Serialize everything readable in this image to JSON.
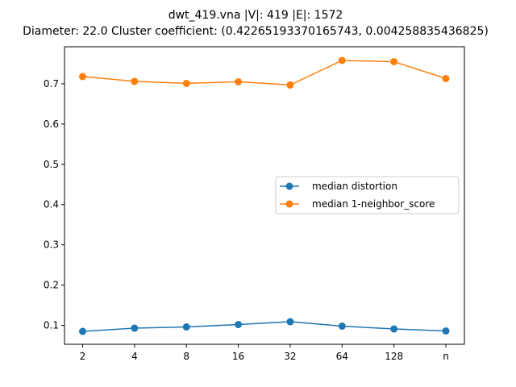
{
  "chart_data": {
    "type": "line",
    "title_line1": "dwt_419.vna |V|: 419 |E|: 1572",
    "title_line2": "Diameter: 22.0 Cluster coefficient: (0.42265193370165743, 0.004258835436825)",
    "categories": [
      "2",
      "4",
      "8",
      "16",
      "32",
      "64",
      "128",
      "n"
    ],
    "series": [
      {
        "name": "median distortion",
        "color": "#1f77b4",
        "values": [
          0.085,
          0.093,
          0.096,
          0.102,
          0.109,
          0.098,
          0.091,
          0.086
        ]
      },
      {
        "name": "median 1-neighbor_score",
        "color": "#ff7f0e",
        "values": [
          0.718,
          0.706,
          0.701,
          0.705,
          0.697,
          0.758,
          0.755,
          0.713
        ]
      }
    ],
    "yticks": [
      "0.1",
      "0.2",
      "0.3",
      "0.4",
      "0.5",
      "0.6",
      "0.7"
    ],
    "ylim": [
      0.053,
      0.792
    ],
    "grid": false,
    "legend_position": "center-right"
  }
}
